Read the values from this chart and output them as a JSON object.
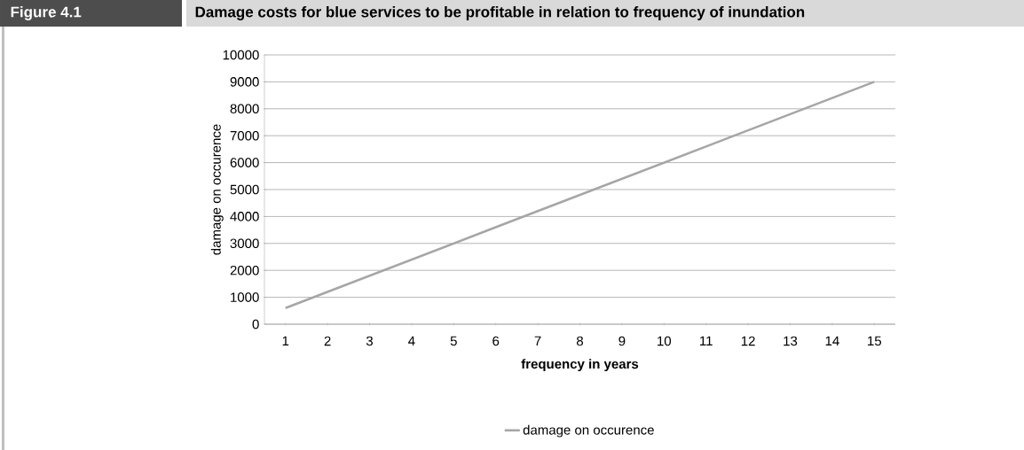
{
  "chart_data": {
    "type": "line",
    "title": "Damage costs for blue services to be profitable in relation to frequency of inundation",
    "annotations": [
      "Figure 4.1"
    ],
    "xlabel": "frequency in years",
    "ylabel": "damage on occurence",
    "categories": [
      "1",
      "2",
      "3",
      "4",
      "5",
      "6",
      "7",
      "8",
      "9",
      "10",
      "11",
      "12",
      "13",
      "14",
      "15"
    ],
    "series": [
      {
        "name": "damage on occurence",
        "color": "#a6a6a6",
        "values": [
          600,
          1200,
          1800,
          2400,
          3000,
          3600,
          4200,
          4800,
          5400,
          6000,
          6600,
          7200,
          7800,
          8400,
          9000
        ]
      }
    ],
    "ylim": [
      0,
      10000
    ],
    "yticks": [
      0,
      1000,
      2000,
      3000,
      4000,
      5000,
      6000,
      7000,
      8000,
      9000,
      10000
    ],
    "grid": "y",
    "legend": "bottom",
    "marker": "none",
    "line_style": "solid"
  }
}
